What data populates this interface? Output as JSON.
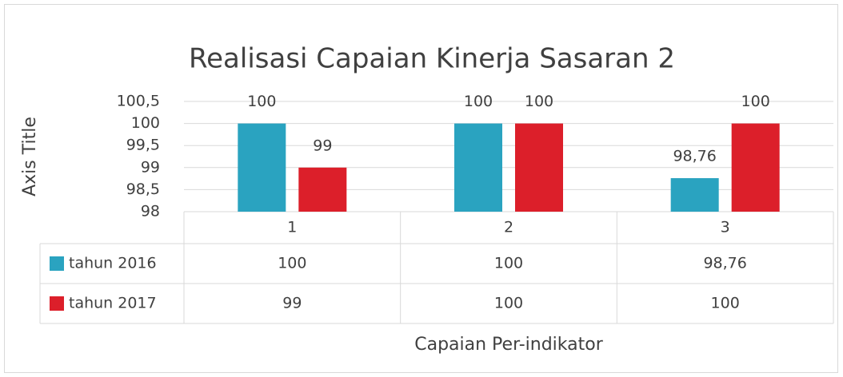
{
  "chart_data": {
    "type": "bar",
    "title": "Realisasi Capaian Kinerja Sasaran 2",
    "y_axis_title": "Axis Title",
    "x_axis_title": "Capaian Per-indikator",
    "categories": [
      "1",
      "2",
      "3"
    ],
    "series": [
      {
        "name": "tahun 2016",
        "color": "#2aa3c0",
        "values": [
          100,
          100,
          98.76
        ],
        "value_labels": [
          "100",
          "100",
          "98,76"
        ]
      },
      {
        "name": "tahun 2017",
        "color": "#dc1f2a",
        "values": [
          99,
          100,
          100
        ],
        "value_labels": [
          "99",
          "100",
          "100"
        ]
      }
    ],
    "ylim": [
      98,
      100.5
    ],
    "yticks": [
      98,
      {
        "value": 98.5,
        "label": "98,5"
      },
      99,
      {
        "value": 99.5,
        "label": "99,5"
      },
      100,
      {
        "value": 100.5,
        "label": "100,5"
      }
    ],
    "grid": true
  }
}
